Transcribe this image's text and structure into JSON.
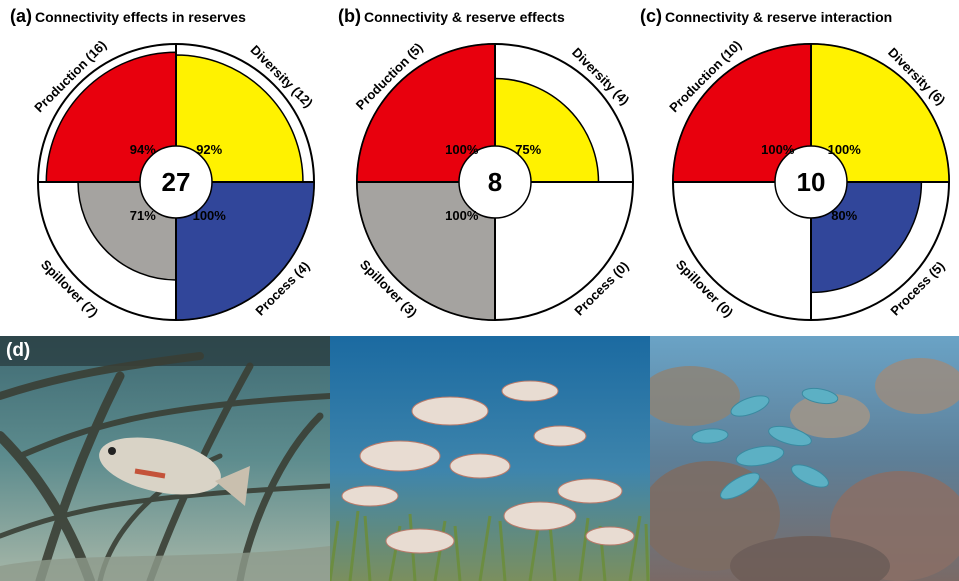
{
  "colors": {
    "production": "#e8000d",
    "diversity": "#fff200",
    "process": "#31469a",
    "spillover": "#a5a3a0",
    "outline": "#000000"
  },
  "panels": [
    {
      "letter": "(a)",
      "title": "Connectivity effects in reserves",
      "total": "27"
    },
    {
      "letter": "(b)",
      "title": "Connectivity & reserve effects",
      "total": "8"
    },
    {
      "letter": "(c)",
      "title": "Connectivity & reserve interaction",
      "total": "10"
    }
  ],
  "photo_panel": {
    "letter": "(d)",
    "photos": [
      "mangrove-snapper-photo",
      "seagrass-school-photo",
      "coral-reef-photo"
    ]
  },
  "chart_data": [
    {
      "type": "pie",
      "title": "Connectivity effects in reserves",
      "center_label": "27",
      "series": [
        {
          "name": "Production",
          "category_label": "Production (16)",
          "count": 16,
          "value_label": "94%",
          "value": 94
        },
        {
          "name": "Diversity",
          "category_label": "Diversity (12)",
          "count": 12,
          "value_label": "92%",
          "value": 92
        },
        {
          "name": "Process",
          "category_label": "Process (4)",
          "count": 4,
          "value_label": "100%",
          "value": 100
        },
        {
          "name": "Spillover",
          "category_label": "Spillover (7)",
          "count": 7,
          "value_label": "71%",
          "value": 71
        }
      ]
    },
    {
      "type": "pie",
      "title": "Connectivity & reserve effects",
      "center_label": "8",
      "series": [
        {
          "name": "Production",
          "category_label": "Production (5)",
          "count": 5,
          "value_label": "100%",
          "value": 100
        },
        {
          "name": "Diversity",
          "category_label": "Diversity (4)",
          "count": 4,
          "value_label": "75%",
          "value": 75
        },
        {
          "name": "Process",
          "category_label": "Process (0)",
          "count": 0,
          "value_label": "",
          "value": 0
        },
        {
          "name": "Spillover",
          "category_label": "Spillover (3)",
          "count": 3,
          "value_label": "100%",
          "value": 100
        }
      ]
    },
    {
      "type": "pie",
      "title": "Connectivity & reserve interaction",
      "center_label": "10",
      "series": [
        {
          "name": "Production",
          "category_label": "Production (10)",
          "count": 10,
          "value_label": "100%",
          "value": 100
        },
        {
          "name": "Diversity",
          "category_label": "Diversity (6)",
          "count": 6,
          "value_label": "100%",
          "value": 100
        },
        {
          "name": "Process",
          "category_label": "Process (5)",
          "count": 5,
          "value_label": "80%",
          "value": 80
        },
        {
          "name": "Spillover",
          "category_label": "Spillover (0)",
          "count": 0,
          "value_label": "",
          "value": 0
        }
      ]
    }
  ]
}
